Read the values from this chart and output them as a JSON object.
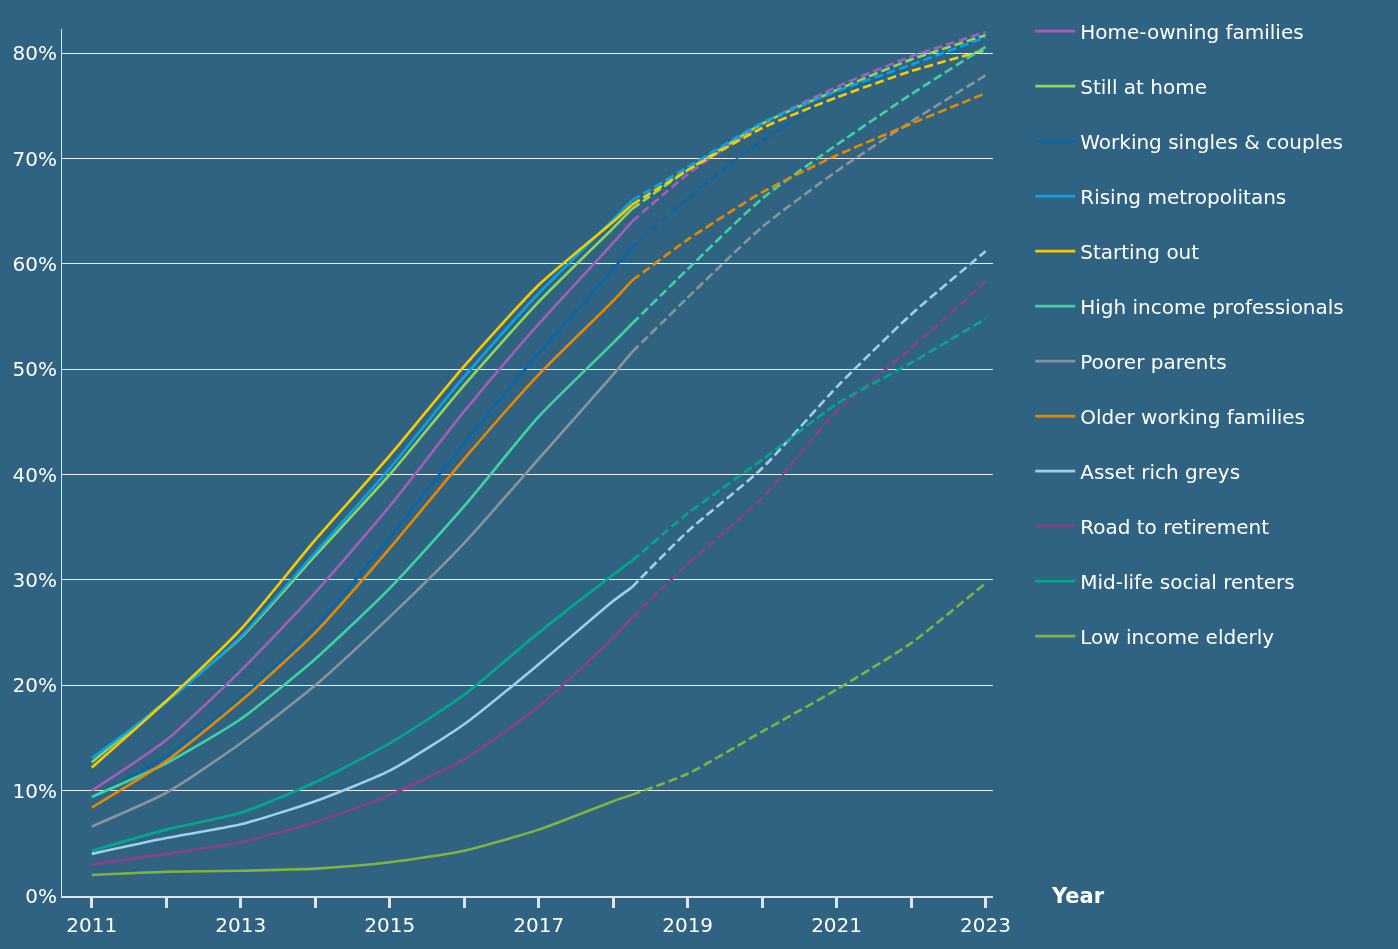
{
  "chart_data": {
    "type": "line",
    "xlabel": "Year",
    "x": [
      2011,
      2012,
      2013,
      2014,
      2015,
      2016,
      2017,
      2018,
      2018.25
    ],
    "xlim": [
      2010.6,
      2023.1
    ],
    "xticks": [
      {
        "value": 2011,
        "label": "2011"
      },
      {
        "value": 2012,
        "label": null
      },
      {
        "value": 2013,
        "label": "2013"
      },
      {
        "value": 2014,
        "label": null
      },
      {
        "value": 2015,
        "label": "2015"
      },
      {
        "value": 2016,
        "label": null
      },
      {
        "value": 2017,
        "label": "2017"
      },
      {
        "value": 2018,
        "label": null
      },
      {
        "value": 2019,
        "label": "2019"
      },
      {
        "value": 2020,
        "label": null
      },
      {
        "value": 2021,
        "label": "2021"
      },
      {
        "value": 2022,
        "label": null
      },
      {
        "value": 2023,
        "label": "2023"
      }
    ],
    "ylim": [
      0,
      82.3
    ],
    "yticks": [
      {
        "value": 0,
        "label": "0%"
      },
      {
        "value": 10,
        "label": "10%"
      },
      {
        "value": 20,
        "label": "20%"
      },
      {
        "value": 30,
        "label": "30%"
      },
      {
        "value": 40,
        "label": "40%"
      },
      {
        "value": 50,
        "label": "50%"
      },
      {
        "value": 60,
        "label": "60%"
      },
      {
        "value": 70,
        "label": "70%"
      },
      {
        "value": 80,
        "label": "80%"
      }
    ],
    "grid": "y",
    "legend": "top right",
    "line_style": "solid",
    "series": [
      {
        "name": "Home-owning families",
        "color": "#a35fb8",
        "values": [
          10.0,
          14.8,
          21.4,
          28.8,
          37,
          46,
          54.3,
          62,
          64.0
        ]
      },
      {
        "name": "Still at home",
        "color": "#8fd65a",
        "values": [
          12.7,
          18.5,
          24.5,
          32.3,
          40,
          48.5,
          56.4,
          63.4,
          65.2
        ]
      },
      {
        "name": "Working singles & couples",
        "color": "#0a66a5",
        "values": [
          9.2,
          13.3,
          18.8,
          25.5,
          34,
          43,
          51.5,
          59.5,
          61.5
        ]
      },
      {
        "name": "Rising metropolitans",
        "color": "#0aa2e2",
        "values": [
          13.1,
          18.4,
          24.6,
          32.6,
          40.6,
          49.3,
          57.2,
          64.2,
          66.0
        ]
      },
      {
        "name": "Starting out",
        "color": "#f7cb00",
        "values": [
          12.2,
          18.5,
          25.3,
          33.8,
          41.8,
          50.3,
          58,
          64,
          65.6
        ]
      },
      {
        "name": "High income professionals",
        "color": "#3fd3a3",
        "values": [
          9.4,
          12.6,
          16.8,
          22.5,
          29.2,
          37,
          45.5,
          52.5,
          54.3
        ]
      },
      {
        "name": "Poorer parents",
        "color": "#8a9499",
        "values": [
          6.6,
          9.8,
          14.5,
          20,
          26.5,
          33.5,
          41.5,
          49.5,
          51.6
        ]
      },
      {
        "name": "Older working families",
        "color": "#e88800",
        "values": [
          8.4,
          12.8,
          18.5,
          25,
          33,
          41.5,
          49.5,
          56.5,
          58.4
        ]
      },
      {
        "name": "Asset rich greys",
        "color": "#9dd0ec",
        "values": [
          4.0,
          5.5,
          6.8,
          9,
          11.9,
          16.3,
          22,
          28,
          29.3
        ]
      },
      {
        "name": "Road to retirement",
        "color": "#8b3f8c",
        "values": [
          3.0,
          4.0,
          5.1,
          7,
          9.6,
          13,
          18,
          24.5,
          26.4
        ]
      },
      {
        "name": "Mid-life social renters",
        "color": "#00a98b",
        "values": [
          4.3,
          6.3,
          7.9,
          10.8,
          14.5,
          19.1,
          25,
          30.5,
          31.8
        ]
      },
      {
        "name": "Low income elderly",
        "color": "#7fb342",
        "values": [
          2.0,
          2.3,
          2.4,
          2.6,
          3.2,
          4.3,
          6.3,
          9,
          9.6
        ]
      },
      {
        "color": "#a35fb8",
        "line_style": "dashed",
        "x": [
          2018.25,
          2019,
          2020,
          2021,
          2022,
          2023
        ],
        "values": [
          64.0,
          68.5,
          73.3,
          76.8,
          79.7,
          82.0
        ]
      },
      {
        "color": "#8fd65a",
        "line_style": "dashed",
        "x": [
          2018.25,
          2019,
          2020,
          2021,
          2022,
          2023
        ],
        "values": [
          65.2,
          68.9,
          73.3,
          76.5,
          79.4,
          81.7
        ]
      },
      {
        "color": "#0a66a5",
        "line_style": "dashed",
        "x": [
          2018.25,
          2019,
          2020,
          2021,
          2022,
          2023
        ],
        "values": [
          61.5,
          66.2,
          71.7,
          76.0,
          78.8,
          81.3
        ]
      },
      {
        "color": "#0aa2e2",
        "line_style": "dashed",
        "x": [
          2018.25,
          2019,
          2020,
          2021,
          2022,
          2023
        ],
        "values": [
          66.0,
          69.2,
          73.4,
          76.4,
          78.9,
          81.5
        ]
      },
      {
        "color": "#f7cb00",
        "line_style": "dashed",
        "x": [
          2018.25,
          2019,
          2020,
          2021,
          2022,
          2023
        ],
        "values": [
          65.6,
          68.9,
          72.9,
          75.8,
          78.3,
          80.3
        ]
      },
      {
        "color": "#3fd3a3",
        "line_style": "dashed",
        "x": [
          2018.25,
          2019,
          2020,
          2021,
          2022,
          2023
        ],
        "values": [
          54.3,
          59.5,
          66.2,
          71.3,
          76.1,
          80.6
        ]
      },
      {
        "color": "#8a9499",
        "line_style": "dashed",
        "x": [
          2018.25,
          2019,
          2020,
          2021,
          2022,
          2023
        ],
        "values": [
          51.6,
          56.8,
          63.5,
          68.8,
          73.5,
          77.9
        ]
      },
      {
        "color": "#e88800",
        "line_style": "dashed",
        "x": [
          2018.25,
          2019,
          2020,
          2021,
          2022,
          2023
        ],
        "values": [
          58.4,
          62.3,
          66.8,
          70.3,
          73.3,
          76.2
        ]
      },
      {
        "color": "#9dd0ec",
        "line_style": "dashed",
        "x": [
          2018.25,
          2019,
          2020,
          2021,
          2022,
          2023
        ],
        "values": [
          29.3,
          34.6,
          40.6,
          48.3,
          55.2,
          61.2
        ]
      },
      {
        "color": "#8b3f8c",
        "line_style": "dashed",
        "x": [
          2018.25,
          2019,
          2020,
          2021,
          2022,
          2023
        ],
        "values": [
          26.4,
          31.5,
          37.8,
          46,
          52,
          58.3
        ]
      },
      {
        "color": "#00a98b",
        "line_style": "dashed",
        "x": [
          2018.25,
          2019,
          2020,
          2021,
          2022,
          2023
        ],
        "values": [
          31.8,
          36.3,
          41.4,
          46.7,
          50.6,
          54.8
        ]
      },
      {
        "color": "#7fb342",
        "line_style": "dashed",
        "x": [
          2018.25,
          2019,
          2020,
          2021,
          2022,
          2023
        ],
        "values": [
          9.6,
          11.6,
          15.6,
          19.6,
          24,
          29.7
        ]
      }
    ]
  }
}
